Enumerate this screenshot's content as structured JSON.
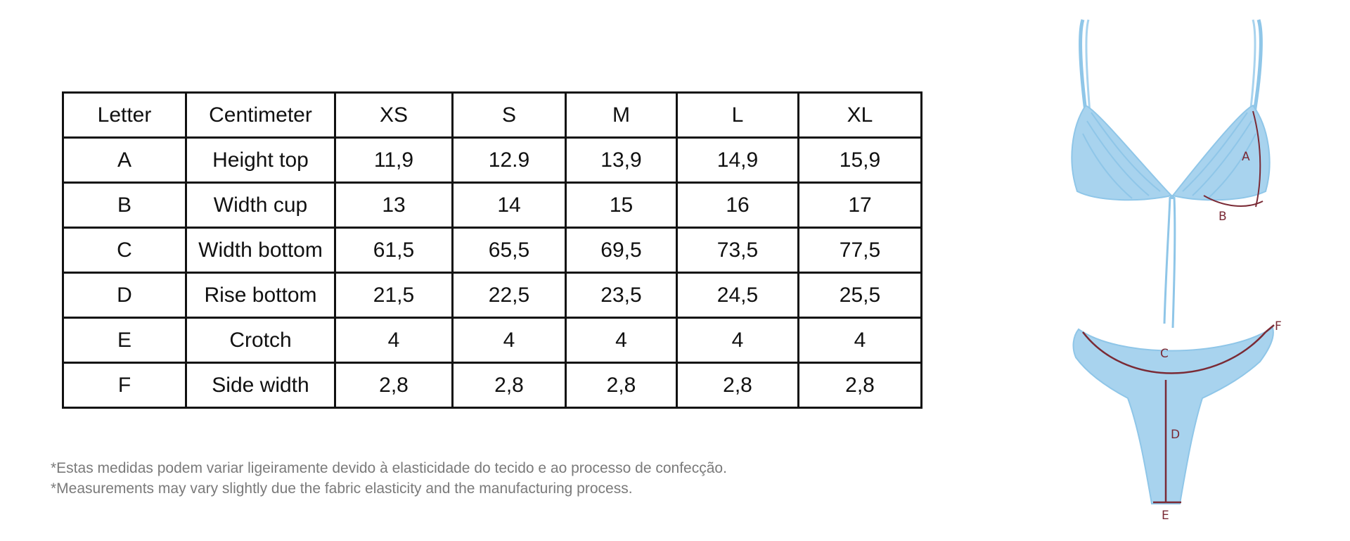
{
  "table": {
    "header": [
      "Letter",
      "Centimeter",
      "XS",
      "S",
      "M",
      "L",
      "XL"
    ],
    "rows": [
      [
        "A",
        "Height top",
        "11,9",
        "12.9",
        "13,9",
        "14,9",
        "15,9"
      ],
      [
        "B",
        "Width cup",
        "13",
        "14",
        "15",
        "16",
        "17"
      ],
      [
        "C",
        "Width bottom",
        "61,5",
        "65,5",
        "69,5",
        "73,5",
        "77,5"
      ],
      [
        "D",
        "Rise bottom",
        "21,5",
        "22,5",
        "23,5",
        "24,5",
        "25,5"
      ],
      [
        "E",
        "Crotch",
        "4",
        "4",
        "4",
        "4",
        "4"
      ],
      [
        "F",
        "Side width",
        "2,8",
        "2,8",
        "2,8",
        "2,8",
        "2,8"
      ]
    ]
  },
  "notes": {
    "pt": "*Estas medidas podem variar ligeiramente devido à elasticidade do tecido e ao processo de confecção.",
    "en": "*Measurements may vary slightly due the fabric elasticity and the manufacturing process."
  },
  "illustration": {
    "garment_color": "#a8d3ee",
    "measure_color": "#7a2a35",
    "labels": {
      "a": "A",
      "b": "B",
      "c": "C",
      "d": "D",
      "e": "E",
      "f": "F"
    }
  }
}
